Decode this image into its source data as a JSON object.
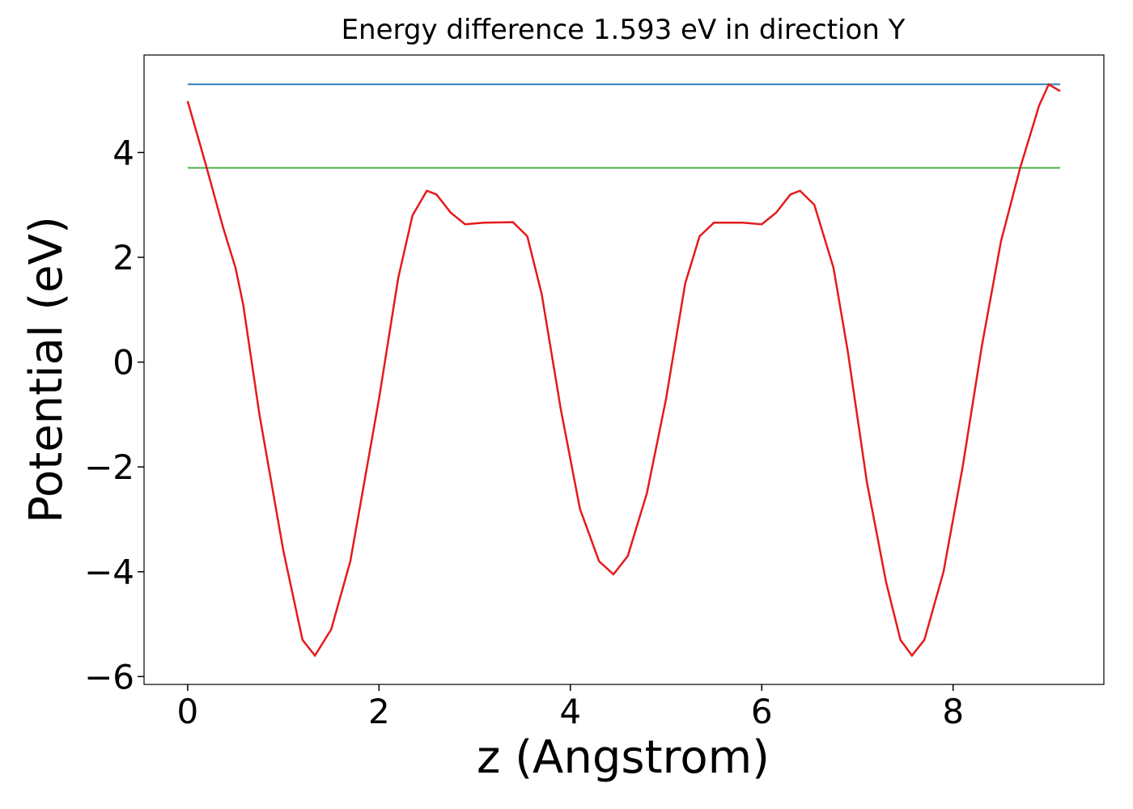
{
  "chart_data": {
    "type": "line",
    "title": "Energy difference 1.593 eV in direction Y",
    "xlabel": "z (Angstrom)",
    "ylabel": "Potential (eV)",
    "xlim": [
      -0.456,
      9.576
    ],
    "ylim": [
      -6.15,
      5.86
    ],
    "xticks": [
      0,
      2,
      4,
      6,
      8
    ],
    "yticks": [
      {
        "value": -6,
        "label": "−6"
      },
      {
        "value": -4,
        "label": "−4"
      },
      {
        "value": -2,
        "label": "−2"
      },
      0,
      2,
      4
    ],
    "series": [
      {
        "color": "#e41a1c",
        "x": [
          0,
          0.2,
          0.37,
          0.5,
          0.58,
          0.75,
          1.0,
          1.2,
          1.33,
          1.5,
          1.7,
          2.0,
          2.2,
          2.35,
          2.5,
          2.6,
          2.75,
          2.9,
          3.1,
          3.4,
          3.55,
          3.7,
          3.9,
          4.1,
          4.3,
          4.45,
          4.6,
          4.8,
          5.0,
          5.2,
          5.35,
          5.5,
          5.8,
          6.0,
          6.15,
          6.3,
          6.4,
          6.55,
          6.75,
          6.9,
          7.1,
          7.3,
          7.45,
          7.57,
          7.7,
          7.9,
          8.1,
          8.3,
          8.5,
          8.7,
          8.9,
          9.0,
          9.12
        ],
        "values": [
          4.98,
          3.7,
          2.57,
          1.8,
          1.1,
          -1.0,
          -3.6,
          -5.3,
          -5.6,
          -5.1,
          -3.8,
          -0.7,
          1.6,
          2.8,
          3.27,
          3.2,
          2.85,
          2.63,
          2.66,
          2.67,
          2.4,
          1.3,
          -0.9,
          -2.8,
          -3.8,
          -4.05,
          -3.7,
          -2.5,
          -0.7,
          1.5,
          2.4,
          2.66,
          2.66,
          2.63,
          2.85,
          3.2,
          3.27,
          3.0,
          1.8,
          0.2,
          -2.3,
          -4.2,
          -5.3,
          -5.6,
          -5.3,
          -4.0,
          -2.0,
          0.3,
          2.3,
          3.7,
          4.9,
          5.3,
          5.17
        ]
      },
      {
        "color": "#377eb8",
        "x": [
          0,
          9.12
        ],
        "values": [
          5.3,
          5.3
        ]
      },
      {
        "color": "#4daf4a",
        "x": [
          0,
          9.12
        ],
        "values": [
          3.707,
          3.707
        ]
      }
    ]
  }
}
